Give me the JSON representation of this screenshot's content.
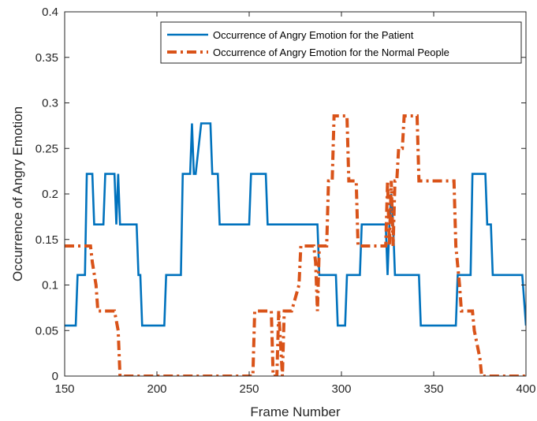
{
  "chart_data": {
    "type": "line",
    "title": "",
    "xlabel": "Frame Number",
    "ylabel": "Occurrence of Angry Emotion",
    "xlim": [
      150,
      400
    ],
    "ylim": [
      0,
      0.4
    ],
    "xticks": [
      150,
      200,
      250,
      300,
      350,
      400
    ],
    "yticks": [
      0,
      0.05,
      0.1,
      0.15,
      0.2,
      0.25,
      0.3,
      0.35,
      0.4
    ],
    "xtick_labels": [
      "150",
      "200",
      "250",
      "300",
      "350",
      "400"
    ],
    "ytick_labels": [
      "0",
      "0.05",
      "0.1",
      "0.15",
      "0.2",
      "0.25",
      "0.3",
      "0.35",
      "0.4"
    ],
    "grid": false,
    "legend_position": "top-right",
    "series": [
      {
        "name": "Occurrence of Angry Emotion for the Patient",
        "color": "#0072BD",
        "style": "solid",
        "x": [
          150,
          156,
          157,
          161,
          162,
          165,
          166,
          171,
          172,
          177,
          178,
          179,
          180,
          181,
          182,
          189,
          190,
          191,
          192,
          204,
          205,
          213,
          214,
          218,
          219,
          220,
          221,
          224,
          225,
          229,
          230,
          233,
          234,
          250,
          251,
          259,
          260,
          287,
          288,
          297,
          298,
          302,
          303,
          310,
          311,
          324,
          325,
          326,
          327,
          328,
          329,
          342,
          343,
          362,
          363,
          370,
          371,
          378,
          379,
          381,
          382,
          398,
          400
        ],
        "y": [
          0.0555,
          0.0555,
          0.111,
          0.111,
          0.222,
          0.222,
          0.1665,
          0.1665,
          0.222,
          0.222,
          0.1665,
          0.222,
          0.1665,
          0.1665,
          0.1665,
          0.1665,
          0.111,
          0.111,
          0.0555,
          0.0555,
          0.111,
          0.111,
          0.222,
          0.222,
          0.2775,
          0.222,
          0.222,
          0.2775,
          0.2775,
          0.2775,
          0.222,
          0.222,
          0.1665,
          0.1665,
          0.222,
          0.222,
          0.1665,
          0.1665,
          0.111,
          0.111,
          0.0555,
          0.0555,
          0.111,
          0.111,
          0.1665,
          0.1665,
          0.111,
          0.1665,
          0.2,
          0.1665,
          0.111,
          0.111,
          0.0555,
          0.0555,
          0.111,
          0.111,
          0.222,
          0.222,
          0.1665,
          0.1665,
          0.111,
          0.111,
          0.0555
        ]
      },
      {
        "name": "Occurrence of Angry Emotion for the Normal People",
        "color": "#D95319",
        "style": "dashdot",
        "x": [
          150,
          164,
          165,
          167,
          168,
          176,
          177,
          179,
          180,
          252,
          253,
          262,
          263,
          265,
          266,
          268,
          269,
          272,
          273,
          277,
          278,
          285,
          286,
          287,
          288,
          292,
          293,
          295,
          296,
          303,
          304,
          308,
          309,
          310,
          311,
          324,
          325,
          326,
          327,
          328,
          329,
          330,
          331,
          333,
          334,
          341,
          342,
          357,
          358,
          361,
          362,
          364,
          365,
          371,
          372,
          375,
          376,
          400
        ],
        "y": [
          0.1429,
          0.1429,
          0.125,
          0.1,
          0.0714,
          0.0714,
          0.0714,
          0.05,
          0,
          0,
          0.0714,
          0.0714,
          0,
          0,
          0.0714,
          0,
          0.0714,
          0.0714,
          0.0714,
          0.1,
          0.1429,
          0.1429,
          0.125,
          0.0714,
          0.1429,
          0.1429,
          0.2143,
          0.2143,
          0.2857,
          0.2857,
          0.2143,
          0.2143,
          0.1429,
          0.1429,
          0.1429,
          0.1429,
          0.2143,
          0.1429,
          0.2143,
          0.1429,
          0.2143,
          0.2143,
          0.25,
          0.25,
          0.2857,
          0.2857,
          0.2143,
          0.2143,
          0.2143,
          0.2143,
          0.1429,
          0.1,
          0.0714,
          0.0714,
          0.05,
          0.02,
          0,
          0
        ]
      }
    ]
  }
}
